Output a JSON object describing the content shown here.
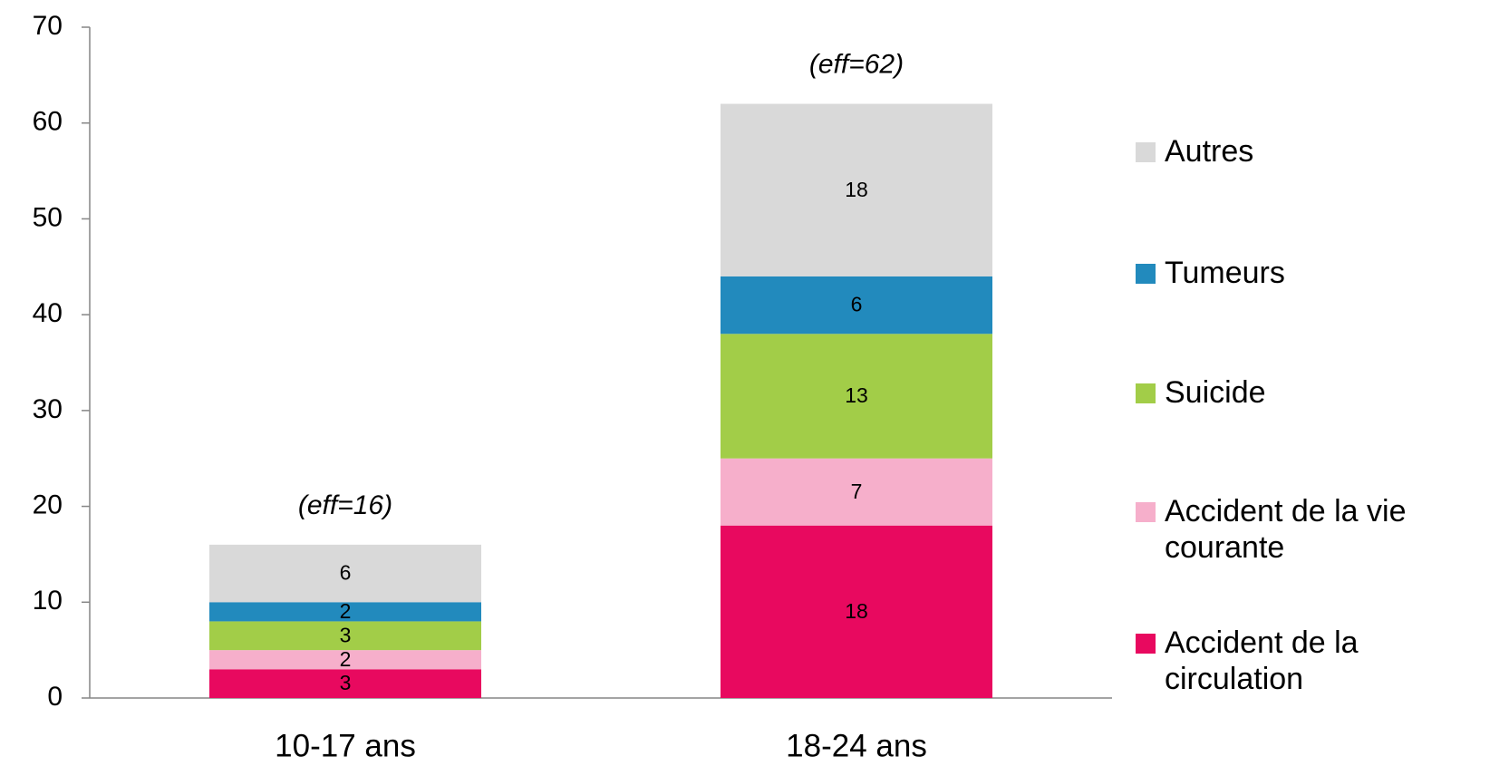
{
  "chart_data": {
    "type": "stacked_bar",
    "categories": [
      "10-17 ans",
      "18-24 ans"
    ],
    "series": [
      {
        "name": "Accident de la circulation",
        "color": "#e8095f",
        "label_color": "#ffffff",
        "values": [
          3,
          18
        ]
      },
      {
        "name": "Accident de la vie courante",
        "color": "#f6afcb",
        "label_color": "#000000",
        "values": [
          2,
          7
        ]
      },
      {
        "name": "Suicide",
        "color": "#a2cd48",
        "label_color": "#000000",
        "values": [
          3,
          13
        ]
      },
      {
        "name": "Tumeurs",
        "color": "#228abd",
        "label_color": "#000000",
        "values": [
          2,
          6
        ]
      },
      {
        "name": "Autres",
        "color": "#d9d9d9",
        "label_color": "#000000",
        "values": [
          6,
          18
        ]
      }
    ],
    "annotations": [
      "(eff=16)",
      "(eff=62)"
    ],
    "ylim": [
      0,
      70
    ],
    "yticks": [
      0,
      10,
      20,
      30,
      40,
      50,
      60,
      70
    ],
    "grid": false,
    "legend": "right"
  }
}
